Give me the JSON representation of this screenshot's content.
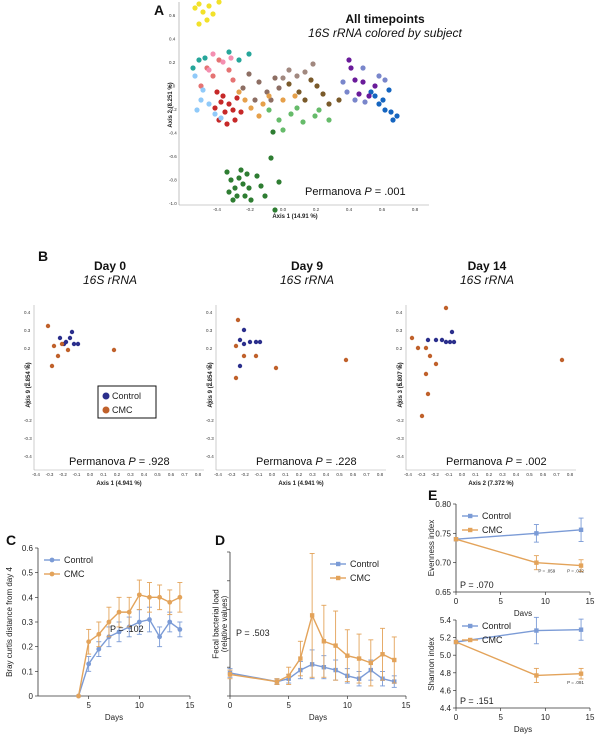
{
  "panel_A": {
    "letter": "A",
    "title": "All timepoints",
    "subtitle": "16S rRNA colored by subject",
    "stat_prefix": "Permanova ",
    "stat_p": "P",
    "stat_value": " = .001",
    "x_label": "Axis 1 (14.91 %)",
    "y_label": "Axis 2 (8.251 %)",
    "x_ticks": [
      "-0.4",
      "-0.2",
      "0.0",
      "0.2",
      "0.4",
      "0.6",
      "0.8"
    ],
    "y_ticks": [
      "0.6",
      "0.4",
      "0.2",
      "0.0",
      "-0.2",
      "-0.4",
      "-0.6",
      "-0.8",
      "-1.0"
    ]
  },
  "panel_B": {
    "letter": "B",
    "legend": {
      "control": "Control",
      "cmc": "CMC"
    },
    "plots": [
      {
        "title": "Day 0",
        "subtitle": "16S rRNA",
        "stat_prefix": "Permanova ",
        "stat_p": "P",
        "stat_value": " = .928",
        "x_label": "Axis 1 (4.941 %)",
        "y_label": "Axis 9 (2.854 %)"
      },
      {
        "title": "Day 9",
        "subtitle": "16S rRNA",
        "stat_prefix": "Permanova ",
        "stat_p": "P",
        "stat_value": " = .228",
        "x_label": "Axis 1 (4.941 %)",
        "y_label": "Axis 9 (2.854 %)"
      },
      {
        "title": "Day 14",
        "subtitle": "16S rRNA",
        "stat_prefix": "Permanova ",
        "stat_p": "P",
        "stat_value": " = .002",
        "x_label": "Axis 2 (7.372 %)",
        "y_label": "Axis 3 (5.807 %)"
      }
    ],
    "tick_x": [
      "-0.4",
      "-0.3",
      "-0.2",
      "-0.1",
      "0.0",
      "0.1",
      "0.2",
      "0.3",
      "0.4",
      "0.5",
      "0.6",
      "0.7",
      "0.8"
    ],
    "tick_y": [
      "0.4",
      "0.3",
      "0.2",
      "0.1",
      "0.0",
      "-0.1",
      "-0.2",
      "-0.3",
      "-0.4"
    ]
  },
  "panel_C": {
    "letter": "C",
    "stat": "P = .102"
  },
  "panel_D": {
    "letter": "D",
    "stat": "P = .503"
  },
  "panel_E": {
    "letter": "E",
    "stat_top": "P = .070",
    "stat_bottom": "P = .151"
  },
  "colors": {
    "control": "#7b9bd6",
    "cmc": "#e3a35a",
    "control_dark": "#2b2f8c",
    "cmc_dark": "#c0612b"
  },
  "chart_data": [
    {
      "type": "line",
      "panel": "C",
      "xlabel": "Days",
      "ylabel": "Bray curtis distance from day 4",
      "xlim": [
        0,
        15
      ],
      "ylim": [
        0,
        0.6
      ],
      "xticks": [
        5,
        10,
        15
      ],
      "yticks": [
        0,
        0.1,
        0.2,
        0.3,
        0.4,
        0.5,
        0.6
      ],
      "legend": [
        "Control",
        "CMC"
      ],
      "series": [
        {
          "name": "Control",
          "x": [
            4,
            5,
            6,
            7,
            8,
            9,
            10,
            11,
            12,
            13,
            14
          ],
          "values": [
            0.0,
            0.13,
            0.19,
            0.24,
            0.26,
            0.28,
            0.3,
            0.31,
            0.24,
            0.3,
            0.27
          ],
          "err": [
            0,
            0.03,
            0.03,
            0.04,
            0.04,
            0.04,
            0.05,
            0.05,
            0.04,
            0.04,
            0.03
          ]
        },
        {
          "name": "CMC",
          "x": [
            4,
            5,
            6,
            7,
            8,
            9,
            10,
            11,
            12,
            13,
            14
          ],
          "values": [
            0.0,
            0.22,
            0.25,
            0.3,
            0.34,
            0.34,
            0.41,
            0.4,
            0.4,
            0.38,
            0.4
          ],
          "err": [
            0,
            0.05,
            0.05,
            0.06,
            0.06,
            0.06,
            0.06,
            0.06,
            0.05,
            0.05,
            0.06
          ]
        }
      ]
    },
    {
      "type": "line",
      "panel": "D",
      "xlabel": "Days",
      "ylabel": "Fecal bacterial load (relative values)",
      "xlim": [
        0,
        15
      ],
      "ylim": [
        0,
        10
      ],
      "xticks": [
        0,
        5,
        10,
        15
      ],
      "yticks": [
        0,
        2,
        4,
        6,
        8,
        10
      ],
      "legend": [
        "Control",
        "CMC"
      ],
      "series": [
        {
          "name": "Control",
          "x": [
            0,
            4,
            5,
            6,
            7,
            8,
            9,
            10,
            11,
            12,
            13,
            14
          ],
          "values": [
            1.6,
            1.0,
            1.2,
            1.8,
            2.2,
            2.0,
            1.8,
            1.4,
            1.2,
            1.8,
            1.2,
            1.0
          ],
          "err": [
            0.3,
            0.2,
            0.3,
            0.6,
            1.0,
            0.8,
            0.7,
            0.5,
            0.5,
            0.7,
            0.5,
            0.4
          ]
        },
        {
          "name": "CMC",
          "x": [
            0,
            4,
            5,
            6,
            7,
            8,
            9,
            10,
            11,
            12,
            13,
            14
          ],
          "values": [
            1.5,
            1.0,
            1.4,
            2.6,
            5.6,
            3.8,
            3.5,
            2.8,
            2.6,
            2.3,
            2.9,
            2.5
          ],
          "err": [
            0.3,
            0.2,
            0.6,
            1.2,
            4.3,
            2.5,
            2.4,
            1.8,
            1.7,
            1.6,
            1.8,
            1.6
          ]
        }
      ]
    },
    {
      "type": "line",
      "panel": "E-top",
      "xlabel": "Days",
      "ylabel": "Evenness index",
      "xlim": [
        0,
        15
      ],
      "ylim": [
        0.65,
        0.8
      ],
      "xticks": [
        0,
        5,
        10,
        15
      ],
      "yticks": [
        0.65,
        0.7,
        0.75,
        0.8
      ],
      "legend": [
        "Control",
        "CMC"
      ],
      "annotations": [
        "P = .059",
        "P = .032"
      ],
      "series": [
        {
          "name": "Control",
          "x": [
            0,
            9,
            14
          ],
          "values": [
            0.74,
            0.75,
            0.756
          ],
          "err": [
            0,
            0.015,
            0.02
          ]
        },
        {
          "name": "CMC",
          "x": [
            0,
            9,
            14
          ],
          "values": [
            0.74,
            0.7,
            0.695
          ],
          "err": [
            0,
            0.012,
            0.01
          ]
        }
      ]
    },
    {
      "type": "line",
      "panel": "E-bottom",
      "xlabel": "Days",
      "ylabel": "Shannon index",
      "xlim": [
        0,
        15
      ],
      "ylim": [
        4.4,
        5.4
      ],
      "xticks": [
        0,
        5,
        10,
        15
      ],
      "yticks": [
        4.4,
        4.6,
        4.8,
        5.0,
        5.2,
        5.4
      ],
      "legend": [
        "Control",
        "CMC"
      ],
      "annotations": [
        "P = .091"
      ],
      "series": [
        {
          "name": "Control",
          "x": [
            0,
            9,
            14
          ],
          "values": [
            5.15,
            5.28,
            5.29
          ],
          "err": [
            0,
            0.15,
            0.12
          ]
        },
        {
          "name": "CMC",
          "x": [
            0,
            9,
            14
          ],
          "values": [
            5.15,
            4.77,
            4.79
          ],
          "err": [
            0,
            0.08,
            0.06
          ]
        }
      ]
    }
  ]
}
